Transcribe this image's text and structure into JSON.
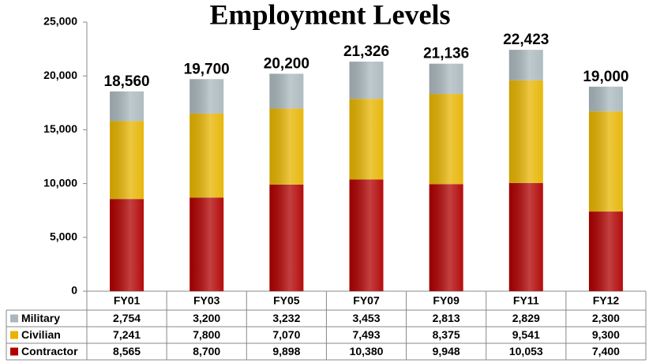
{
  "chart_data": {
    "type": "stacked-bar",
    "title": "Employment Levels",
    "categories": [
      "FY01",
      "FY03",
      "FY05",
      "FY07",
      "FY09",
      "FY11",
      "FY12"
    ],
    "series": [
      {
        "name": "Military",
        "color": "#aab8bd",
        "values": [
          2754,
          3200,
          3232,
          3453,
          2813,
          2829,
          2300
        ],
        "value_labels": [
          "2,754",
          "3,200",
          "3,232",
          "3,453",
          "2,813",
          "2,829",
          "2,300"
        ]
      },
      {
        "name": "Civilian",
        "color": "#e6b400",
        "values": [
          7241,
          7800,
          7070,
          7493,
          8375,
          9541,
          9300
        ],
        "value_labels": [
          "7,241",
          "7,800",
          "7,070",
          "7,493",
          "8,375",
          "9,541",
          "9,300"
        ]
      },
      {
        "name": "Contractor",
        "color": "#b00000",
        "values": [
          8565,
          8700,
          9898,
          10380,
          9948,
          10053,
          7400
        ],
        "value_labels": [
          "8,565",
          "8,700",
          "9,898",
          "10,380",
          "9,948",
          "10,053",
          "7,400"
        ]
      }
    ],
    "totals": [
      18560,
      19700,
      20200,
      21326,
      21136,
      22423,
      19000
    ],
    "total_labels": [
      "18,560",
      "19,700",
      "20,200",
      "21,326",
      "21,136",
      "22,423",
      "19,000"
    ],
    "ylim": [
      0,
      25000
    ],
    "yticks": [
      0,
      {
        "value": 5000,
        "label": "5,000"
      },
      {
        "value": 10000,
        "label": "10,000"
      },
      {
        "value": 15000,
        "label": "15,000"
      },
      {
        "value": 20000,
        "label": "20,000"
      },
      {
        "value": 25000,
        "label": "25,000"
      }
    ]
  }
}
